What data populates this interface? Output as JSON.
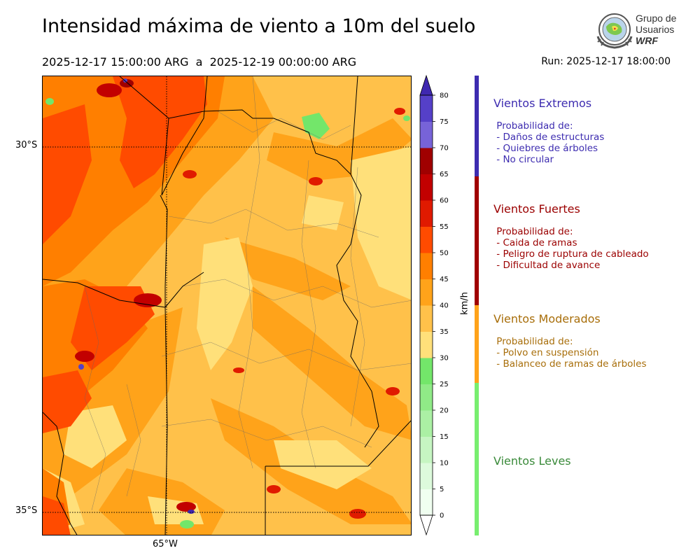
{
  "title": "Intensidad máxima de viento a 10m del suelo",
  "period": "2025-12-17 15:00:00 ARG  a  2025-12-19 00:00:00 ARG",
  "run": "Run: 2025-12-17 18:00:00",
  "logo": {
    "line1": "Grupo de",
    "line2": "Usuarios",
    "line3": "WRF"
  },
  "map_labels": {
    "lat_30": "30°S",
    "lat_35": "35°S",
    "lon_65": "65°W"
  },
  "colorbar": {
    "units": "km/h",
    "ticks": [
      "0",
      "5",
      "10",
      "15",
      "20",
      "25",
      "30",
      "35",
      "40",
      "45",
      "50",
      "55",
      "60",
      "65",
      "70",
      "75",
      "80"
    ],
    "colors": [
      "#f0fff0",
      "#ddfadc",
      "#c6f5c2",
      "#abf0a4",
      "#90ea87",
      "#73e66a",
      "#ffe07a",
      "#ffc14a",
      "#ffa31a",
      "#ff7f00",
      "#ff4b00",
      "#e01a00",
      "#c20000",
      "#a00000",
      "#7763d8",
      "#5540c8",
      "#3f28b0"
    ],
    "over_color": "#3f28b0",
    "under_color": "#ffffff"
  },
  "categories": [
    {
      "title": "Vientos Extremos",
      "color": "#3d2cb0",
      "lines": " Probabilidad de:\n - Daños de estructuras\n - Quiebres de árboles\n - No circular"
    },
    {
      "title": "Vientos Fuertes",
      "color": "#9b0000",
      "lines": " Probabilidad de:\n - Caida de ramas\n - Peligro de ruptura de cableado\n - Dificultad de avance"
    },
    {
      "title": "Vientos Moderados",
      "color": "#a86e0a",
      "lines": " Probabilidad de:\n - Polvo en suspensión\n - Balanceo de ramas de árboles"
    },
    {
      "title": "Vientos Leves",
      "color": "#3a8a3a",
      "lines": ""
    }
  ],
  "category_bar_colors": [
    "#3d2cb0",
    "#a00000",
    "#ffa31a",
    "#78ee6f"
  ]
}
